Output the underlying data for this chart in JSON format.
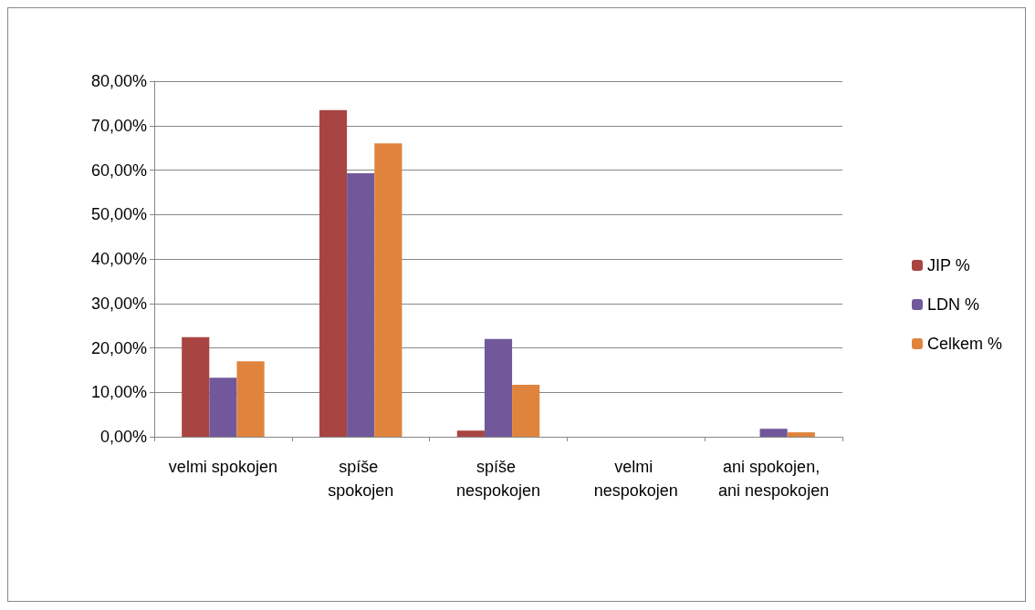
{
  "chart_data": {
    "type": "bar",
    "categories": [
      "velmi spokojen",
      "spíše spokojen",
      "spíše nespokojen",
      "velmi nespokojen",
      "ani spokojen, ani nespokojen"
    ],
    "series": [
      {
        "name": "JIP %",
        "color": "#a84543",
        "values": [
          22.4,
          73.5,
          1.4,
          0,
          0
        ]
      },
      {
        "name": "LDN %",
        "color": "#71589a",
        "values": [
          13.3,
          59.3,
          22,
          0,
          1.8
        ]
      },
      {
        "name": "Celkem %",
        "color": "#e0843d",
        "values": [
          17,
          66,
          11.7,
          0,
          1
        ]
      }
    ],
    "ylim": [
      0,
      80
    ],
    "yticks": [
      {
        "value": 0,
        "label": "0,00%"
      },
      {
        "value": 10,
        "label": "10,00%"
      },
      {
        "value": 20,
        "label": "20,00%"
      },
      {
        "value": 30,
        "label": "30,00%"
      },
      {
        "value": 40,
        "label": "40,00%"
      },
      {
        "value": 50,
        "label": "50,00%"
      },
      {
        "value": 60,
        "label": "60,00%"
      },
      {
        "value": 70,
        "label": "70,00%"
      },
      {
        "value": 80,
        "label": "80,00%"
      }
    ],
    "grid": "y",
    "legend": "right"
  }
}
